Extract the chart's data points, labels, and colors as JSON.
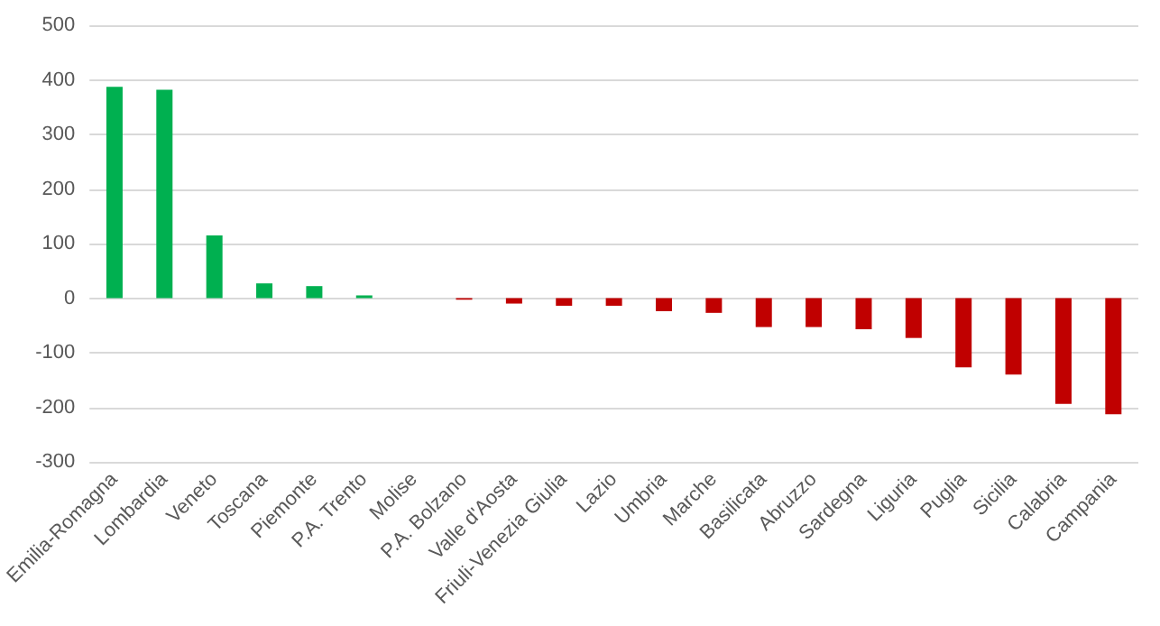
{
  "chart_data": {
    "type": "bar",
    "categories": [
      "Emilia-Romagna",
      "Lombardia",
      "Veneto",
      "Toscana",
      "Piemonte",
      "P.A. Trento",
      "Molise",
      "P.A. Bolzano",
      "Valle d'Aosta",
      "Friuli-Venezia Giulia",
      "Lazio",
      "Umbria",
      "Marche",
      "Basilicata",
      "Abruzzo",
      "Sardegna",
      "Liguria",
      "Puglia",
      "Sicilia",
      "Calabria",
      "Campania"
    ],
    "values": [
      387,
      382,
      115,
      27,
      22,
      5,
      0,
      -3,
      -10,
      -14,
      -14,
      -24,
      -27,
      -53,
      -53,
      -57,
      -73,
      -127,
      -140,
      -194,
      -213
    ],
    "colors": [
      "#00b050",
      "#00b050",
      "#00b050",
      "#00b050",
      "#00b050",
      "#00b050",
      "#00b050",
      "#c00000",
      "#c00000",
      "#c00000",
      "#c00000",
      "#c00000",
      "#c00000",
      "#c00000",
      "#c00000",
      "#c00000",
      "#c00000",
      "#c00000",
      "#c00000",
      "#c00000",
      "#c00000"
    ],
    "ylim": [
      -300,
      500
    ],
    "yticks": [
      -300,
      -200,
      -100,
      0,
      100,
      200,
      300,
      400,
      500
    ],
    "grid": "y"
  }
}
